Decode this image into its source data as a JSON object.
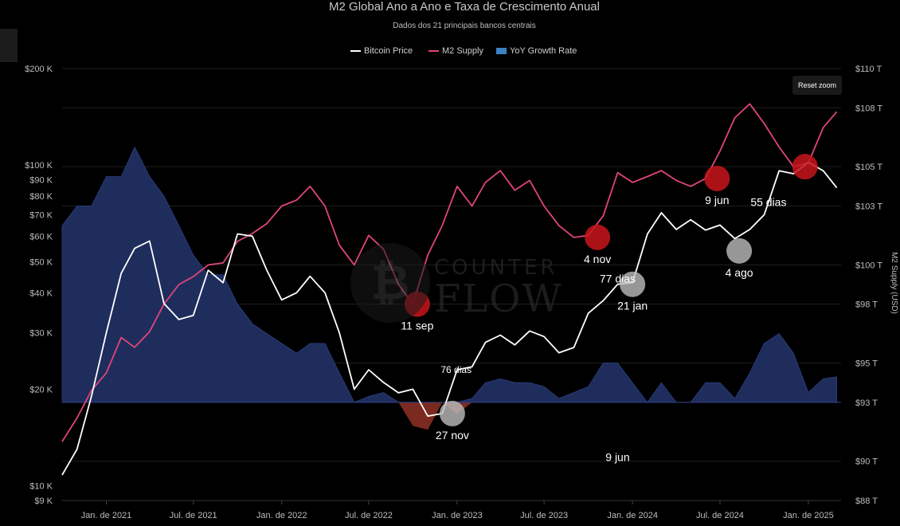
{
  "title": "M2 Global Ano a Ano e Taxa de Crescimento Anual",
  "subtitle": "Dados dos 21 principais bancos centrais",
  "reset_zoom_label": "Reset zoom",
  "watermark": {
    "symbol": "₿",
    "line1": "COUNTER",
    "line2": "FLOW"
  },
  "colors": {
    "bitcoin": "#ffffff",
    "m2": "#e0457b",
    "yoy_pos": "#1f2d5c",
    "yoy_neg": "#7a2a1e",
    "yoy_legend": "#3b82c4",
    "red_marker": "#c8151b",
    "grey_marker": "#bdbdbd"
  },
  "chart_data": {
    "type": "line",
    "title": "M2 Global Ano a Ano e Taxa de Crescimento Anual",
    "subtitle": "Dados dos 21 principais bancos centrais",
    "legend": {
      "position": "top-center",
      "entries": [
        "Bitcoin Price",
        "M2 Supply",
        "YoY Growth Rate"
      ]
    },
    "x_axis": {
      "start": "2020-10-01",
      "end": "2025-03-10",
      "ticks": [
        {
          "date": "2021-01-01",
          "label": "Jan. de 2021"
        },
        {
          "date": "2021-07-01",
          "label": "Jul. de 2021"
        },
        {
          "date": "2022-01-01",
          "label": "Jan. de 2022"
        },
        {
          "date": "2022-07-01",
          "label": "Jul. de 2022"
        },
        {
          "date": "2023-01-01",
          "label": "Jan. de 2023"
        },
        {
          "date": "2023-07-01",
          "label": "Jul. de 2023"
        },
        {
          "date": "2024-01-01",
          "label": "Jan. de 2024"
        },
        {
          "date": "2024-07-01",
          "label": "Jul. de 2024"
        },
        {
          "date": "2025-01-01",
          "label": "Jan. de 2025"
        }
      ]
    },
    "y_left": {
      "scale": "log",
      "range": [
        9000,
        200000
      ],
      "ticks": [
        {
          "value": 200000,
          "label": "$200 K"
        },
        {
          "value": 100000,
          "label": "$100 K"
        },
        {
          "value": 90000,
          "label": "$90 K"
        },
        {
          "value": 80000,
          "label": "$80 K"
        },
        {
          "value": 70000,
          "label": "$70 K"
        },
        {
          "value": 60000,
          "label": "$60 K"
        },
        {
          "value": 50000,
          "label": "$50 K"
        },
        {
          "value": 40000,
          "label": "$40 K"
        },
        {
          "value": 30000,
          "label": "$30 K"
        },
        {
          "value": 20000,
          "label": "$20 K"
        },
        {
          "value": 10000,
          "label": "$10 K"
        },
        {
          "value": 9000,
          "label": "$9 K"
        }
      ]
    },
    "y_right": {
      "label": "M2 Supply (USD)",
      "range": [
        88,
        110
      ],
      "ticks": [
        {
          "value": 110,
          "label": "$110 T"
        },
        {
          "value": 108,
          "label": "$108 T"
        },
        {
          "value": 105,
          "label": "$105 T"
        },
        {
          "value": 103,
          "label": "$103 T"
        },
        {
          "value": 100,
          "label": "$100 T"
        },
        {
          "value": 98,
          "label": "$98 T"
        },
        {
          "value": 95,
          "label": "$95 T"
        },
        {
          "value": 93,
          "label": "$93 T"
        },
        {
          "value": 90,
          "label": "$90 T"
        },
        {
          "value": 88,
          "label": "$88 T"
        }
      ]
    },
    "series": [
      {
        "name": "Bitcoin Price",
        "type": "line",
        "axis": "left",
        "data": [
          [
            "2020-10-01",
            10800
          ],
          [
            "2020-11-01",
            13000
          ],
          [
            "2020-12-01",
            19000
          ],
          [
            "2021-01-01",
            30000
          ],
          [
            "2021-02-01",
            46000
          ],
          [
            "2021-03-01",
            55000
          ],
          [
            "2021-04-01",
            58000
          ],
          [
            "2021-05-01",
            37000
          ],
          [
            "2021-06-01",
            33000
          ],
          [
            "2021-07-01",
            34000
          ],
          [
            "2021-08-01",
            47000
          ],
          [
            "2021-09-01",
            43000
          ],
          [
            "2021-10-01",
            61000
          ],
          [
            "2021-11-01",
            60000
          ],
          [
            "2021-12-01",
            47000
          ],
          [
            "2022-01-01",
            38000
          ],
          [
            "2022-02-01",
            40000
          ],
          [
            "2022-03-01",
            45000
          ],
          [
            "2022-04-01",
            40000
          ],
          [
            "2022-05-01",
            30000
          ],
          [
            "2022-06-01",
            20000
          ],
          [
            "2022-07-01",
            23000
          ],
          [
            "2022-08-01",
            21000
          ],
          [
            "2022-09-01",
            19500
          ],
          [
            "2022-10-01",
            20000
          ],
          [
            "2022-11-01",
            16500
          ],
          [
            "2022-12-01",
            16800
          ],
          [
            "2023-01-01",
            23000
          ],
          [
            "2023-02-01",
            23500
          ],
          [
            "2023-03-01",
            28000
          ],
          [
            "2023-04-01",
            29500
          ],
          [
            "2023-05-01",
            27500
          ],
          [
            "2023-06-01",
            30400
          ],
          [
            "2023-07-01",
            29200
          ],
          [
            "2023-08-01",
            26000
          ],
          [
            "2023-09-01",
            27000
          ],
          [
            "2023-10-01",
            34500
          ],
          [
            "2023-11-01",
            37800
          ],
          [
            "2023-12-01",
            42500
          ],
          [
            "2024-01-01",
            43000
          ],
          [
            "2024-02-01",
            61000
          ],
          [
            "2024-03-01",
            71000
          ],
          [
            "2024-04-01",
            63000
          ],
          [
            "2024-05-01",
            67500
          ],
          [
            "2024-06-01",
            62700
          ],
          [
            "2024-07-01",
            65000
          ],
          [
            "2024-08-01",
            59000
          ],
          [
            "2024-09-01",
            63000
          ],
          [
            "2024-10-01",
            70000
          ],
          [
            "2024-11-01",
            96000
          ],
          [
            "2024-12-01",
            94000
          ],
          [
            "2025-01-01",
            102000
          ],
          [
            "2025-02-01",
            96000
          ],
          [
            "2025-03-01",
            85000
          ]
        ]
      },
      {
        "name": "M2 Supply",
        "type": "line",
        "axis": "right",
        "data": [
          [
            "2020-10-01",
            91.0
          ],
          [
            "2020-11-01",
            92.2
          ],
          [
            "2020-12-01",
            93.6
          ],
          [
            "2021-01-01",
            94.5
          ],
          [
            "2021-02-01",
            96.3
          ],
          [
            "2021-03-01",
            95.8
          ],
          [
            "2021-04-01",
            96.6
          ],
          [
            "2021-05-01",
            98.0
          ],
          [
            "2021-06-01",
            99.0
          ],
          [
            "2021-07-01",
            99.4
          ],
          [
            "2021-08-01",
            100.0
          ],
          [
            "2021-09-01",
            100.1
          ],
          [
            "2021-10-01",
            101.2
          ],
          [
            "2021-11-01",
            101.6
          ],
          [
            "2021-12-01",
            102.1
          ],
          [
            "2022-01-01",
            103.0
          ],
          [
            "2022-02-01",
            103.3
          ],
          [
            "2022-03-01",
            104.0
          ],
          [
            "2022-04-01",
            103.0
          ],
          [
            "2022-05-01",
            101.0
          ],
          [
            "2022-06-01",
            100.0
          ],
          [
            "2022-07-01",
            101.5
          ],
          [
            "2022-08-01",
            100.8
          ],
          [
            "2022-09-01",
            99.0
          ],
          [
            "2022-10-01",
            98.0
          ],
          [
            "2022-11-01",
            100.5
          ],
          [
            "2022-12-01",
            102.0
          ],
          [
            "2023-01-01",
            104.0
          ],
          [
            "2023-02-01",
            103.0
          ],
          [
            "2023-03-01",
            104.2
          ],
          [
            "2023-04-01",
            104.8
          ],
          [
            "2023-05-01",
            103.8
          ],
          [
            "2023-06-01",
            104.3
          ],
          [
            "2023-07-01",
            103.0
          ],
          [
            "2023-08-01",
            102.0
          ],
          [
            "2023-09-01",
            101.4
          ],
          [
            "2023-10-01",
            101.5
          ],
          [
            "2023-11-01",
            102.5
          ],
          [
            "2023-12-01",
            104.7
          ],
          [
            "2024-01-01",
            104.2
          ],
          [
            "2024-02-01",
            104.5
          ],
          [
            "2024-03-01",
            104.8
          ],
          [
            "2024-04-01",
            104.3
          ],
          [
            "2024-05-01",
            104.0
          ],
          [
            "2024-06-01",
            104.4
          ],
          [
            "2024-07-01",
            105.8
          ],
          [
            "2024-08-01",
            107.5
          ],
          [
            "2024-09-01",
            108.2
          ],
          [
            "2024-10-01",
            107.2
          ],
          [
            "2024-11-01",
            106.0
          ],
          [
            "2024-12-01",
            105.0
          ],
          [
            "2025-01-01",
            105.2
          ],
          [
            "2025-02-01",
            107.0
          ],
          [
            "2025-03-01",
            107.8
          ]
        ]
      },
      {
        "name": "YoY Growth Rate",
        "type": "area",
        "axis": "right",
        "baseline": 93,
        "data": [
          [
            "2020-10-01",
            102.0
          ],
          [
            "2020-11-01",
            103.0
          ],
          [
            "2020-12-01",
            103.0
          ],
          [
            "2021-01-01",
            104.5
          ],
          [
            "2021-02-01",
            104.5
          ],
          [
            "2021-03-01",
            106.0
          ],
          [
            "2021-04-01",
            104.5
          ],
          [
            "2021-05-01",
            103.5
          ],
          [
            "2021-06-01",
            102.0
          ],
          [
            "2021-07-01",
            100.5
          ],
          [
            "2021-08-01",
            99.5
          ],
          [
            "2021-09-01",
            99.5
          ],
          [
            "2021-10-01",
            98.0
          ],
          [
            "2021-11-01",
            97.0
          ],
          [
            "2021-12-01",
            96.5
          ],
          [
            "2022-01-01",
            96.0
          ],
          [
            "2022-02-01",
            95.5
          ],
          [
            "2022-03-01",
            96.0
          ],
          [
            "2022-04-01",
            96.0
          ],
          [
            "2022-05-01",
            94.5
          ],
          [
            "2022-06-01",
            93.0
          ],
          [
            "2022-07-01",
            93.3
          ],
          [
            "2022-08-01",
            93.5
          ],
          [
            "2022-09-01",
            93.0
          ],
          [
            "2022-10-01",
            91.8
          ],
          [
            "2022-11-01",
            91.6
          ],
          [
            "2022-12-01",
            93.0
          ],
          [
            "2023-01-01",
            92.4
          ],
          [
            "2023-02-01",
            93.2
          ],
          [
            "2023-03-01",
            94.0
          ],
          [
            "2023-04-01",
            94.2
          ],
          [
            "2023-05-01",
            94.0
          ],
          [
            "2023-06-01",
            94.0
          ],
          [
            "2023-07-01",
            93.8
          ],
          [
            "2023-08-01",
            93.2
          ],
          [
            "2023-09-01",
            93.5
          ],
          [
            "2023-10-01",
            93.8
          ],
          [
            "2023-11-01",
            95.0
          ],
          [
            "2023-12-01",
            95.0
          ],
          [
            "2024-01-01",
            94.0
          ],
          [
            "2024-02-01",
            93.0
          ],
          [
            "2024-03-01",
            94.0
          ],
          [
            "2024-04-01",
            93.0
          ],
          [
            "2024-05-01",
            93.0
          ],
          [
            "2024-06-01",
            94.0
          ],
          [
            "2024-07-01",
            94.0
          ],
          [
            "2024-08-01",
            93.2
          ],
          [
            "2024-09-01",
            94.5
          ],
          [
            "2024-10-01",
            96.0
          ],
          [
            "2024-11-01",
            96.5
          ],
          [
            "2024-12-01",
            95.5
          ],
          [
            "2025-01-01",
            93.5
          ],
          [
            "2025-02-01",
            94.2
          ],
          [
            "2025-03-01",
            94.3
          ]
        ]
      }
    ],
    "markers": [
      {
        "date": "2022-10-10",
        "value": 98.0,
        "axis": "right",
        "color": "red",
        "label": "11 sep"
      },
      {
        "date": "2023-10-20",
        "value": 101.4,
        "axis": "right",
        "color": "red",
        "label": "4 nov"
      },
      {
        "date": "2024-06-25",
        "value": 104.4,
        "axis": "right",
        "color": "red",
        "label": "9 jun"
      },
      {
        "date": "2024-12-25",
        "value": 105.0,
        "axis": "right",
        "color": "red"
      },
      {
        "date": "2022-12-22",
        "value": 16800,
        "axis": "left",
        "color": "grey",
        "label": "27 nov"
      },
      {
        "date": "2024-01-01",
        "value": 42500,
        "axis": "left",
        "color": "grey",
        "label": "21 jan"
      },
      {
        "date": "2024-08-10",
        "value": 54000,
        "axis": "left",
        "color": "grey",
        "label": "4 ago"
      }
    ],
    "annotations": [
      {
        "date": "2022-12-30",
        "value": 94.5,
        "axis": "right",
        "text": "76 dias",
        "color": "#ffffff",
        "size": 12
      },
      {
        "date": "2023-12-01",
        "value": 99.1,
        "axis": "right",
        "text": "77 dias",
        "color": "#ffffff",
        "size": 14
      },
      {
        "date": "2024-10-10",
        "value": 103.0,
        "axis": "right",
        "text": "55 dias",
        "color": "#ffffff",
        "size": 14
      },
      {
        "date": "2023-12-01",
        "value": 90.0,
        "axis": "right",
        "text": "9 jun",
        "color": "#ffffff",
        "size": 14
      }
    ]
  }
}
